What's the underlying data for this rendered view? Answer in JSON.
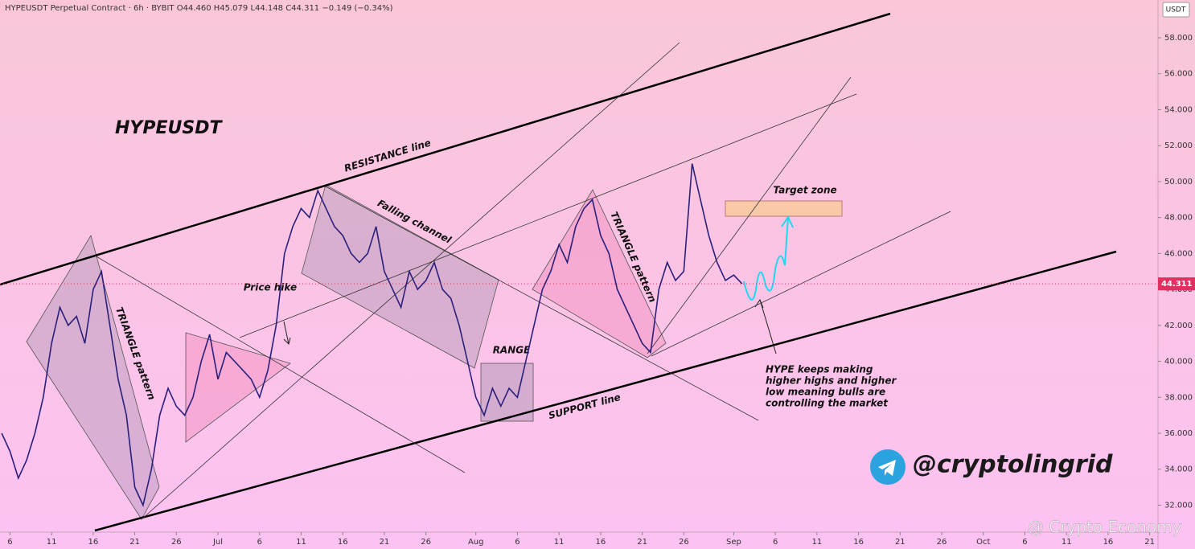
{
  "header": "HYPEUSDT Perpetual Contract · 6h · BYBIT  O44.460 H45.079 L44.148 C44.311 −0.149 (−0.34%)",
  "currency": "USDT",
  "chart_data": {
    "type": "line",
    "title": "HYPEUSDT",
    "color": "#2a1f7a",
    "x": [
      -1,
      0,
      1,
      2,
      3,
      4,
      5,
      6,
      7,
      8,
      9,
      10,
      11,
      12,
      13,
      14,
      15,
      16,
      17,
      18,
      19,
      20,
      21,
      22,
      23,
      24,
      25,
      26,
      27,
      28,
      29,
      30,
      31,
      32,
      33,
      34,
      35,
      36,
      37,
      38,
      39,
      40,
      41,
      42,
      43,
      44,
      45,
      46,
      47,
      48,
      49,
      50,
      51,
      52,
      53,
      54,
      55,
      56,
      57,
      58,
      59,
      60,
      61,
      62,
      63,
      64,
      65,
      66,
      67,
      68,
      69,
      70,
      71,
      72,
      73,
      74,
      75,
      76,
      77,
      78,
      79,
      80,
      81,
      82,
      83,
      84,
      85,
      86,
      87,
      88
    ],
    "values": [
      36,
      35,
      33.5,
      34.5,
      36,
      38,
      41,
      43,
      42,
      42.5,
      41,
      44,
      45,
      42,
      39,
      37,
      33,
      32,
      34,
      37,
      38.5,
      37.5,
      37,
      38,
      40,
      41.5,
      39,
      40.5,
      40,
      39.5,
      39,
      38,
      39.5,
      42,
      46,
      47.5,
      48.5,
      48,
      49.5,
      48.5,
      47.5,
      47,
      46,
      45.5,
      46,
      47.5,
      45,
      44,
      43,
      45,
      44,
      44.5,
      45.5,
      44,
      43.5,
      42,
      40,
      38,
      37,
      38.5,
      37.5,
      38.5,
      38,
      40,
      42,
      44,
      45,
      46.5,
      45.5,
      47.5,
      48.5,
      49,
      47,
      46,
      44,
      43,
      42,
      41,
      40.5,
      44,
      45.5,
      44.5,
      45,
      51,
      49,
      47,
      45.5,
      44.5,
      44.8,
      44.311
    ],
    "last_price": {
      "value": 44.311,
      "label": "44.311"
    },
    "xlim": [
      -1.2,
      138
    ],
    "xticks": [
      {
        "value": 0,
        "label": "6"
      },
      {
        "value": 5,
        "label": "11"
      },
      {
        "value": 10,
        "label": "16"
      },
      {
        "value": 15,
        "label": "21"
      },
      {
        "value": 20,
        "label": "26"
      },
      {
        "value": 25,
        "label": "Jul"
      },
      {
        "value": 30,
        "label": "6"
      },
      {
        "value": 35,
        "label": "11"
      },
      {
        "value": 40,
        "label": "16"
      },
      {
        "value": 45,
        "label": "21"
      },
      {
        "value": 50,
        "label": "26"
      },
      {
        "value": 56,
        "label": "Aug"
      },
      {
        "value": 61,
        "label": "6"
      },
      {
        "value": 66,
        "label": "11"
      },
      {
        "value": 71,
        "label": "16"
      },
      {
        "value": 76,
        "label": "21"
      },
      {
        "value": 81,
        "label": "26"
      },
      {
        "value": 87,
        "label": "Sep"
      },
      {
        "value": 92,
        "label": "6"
      },
      {
        "value": 97,
        "label": "11"
      },
      {
        "value": 102,
        "label": "16"
      },
      {
        "value": 107,
        "label": "21"
      },
      {
        "value": 112,
        "label": "26"
      },
      {
        "value": 117,
        "label": "Oct"
      },
      {
        "value": 122,
        "label": "6"
      },
      {
        "value": 127,
        "label": "11"
      },
      {
        "value": 132,
        "label": "16"
      },
      {
        "value": 137,
        "label": "21"
      }
    ],
    "ylim": [
      30.5,
      60.1
    ],
    "yticks": [
      {
        "value": 32,
        "label": "32.000"
      },
      {
        "value": 34,
        "label": "34.000"
      },
      {
        "value": 36,
        "label": "36.000"
      },
      {
        "value": 38,
        "label": "38.000"
      },
      {
        "value": 40,
        "label": "40.000"
      },
      {
        "value": 42,
        "label": "42.000"
      },
      {
        "value": 44,
        "label": "44.000"
      },
      {
        "value": 46,
        "label": "46.000"
      },
      {
        "value": 48,
        "label": "48.000"
      },
      {
        "value": 50,
        "label": "50.000"
      },
      {
        "value": 52,
        "label": "52.000"
      },
      {
        "value": 54,
        "label": "54.000"
      },
      {
        "value": 56,
        "label": "56.000"
      },
      {
        "value": 58,
        "label": "58.000"
      }
    ]
  },
  "annotations": {
    "resistance": "RESISTANCE line",
    "support": "SUPPORT line",
    "falling": "Falling channel",
    "price_hike": "Price hike",
    "triangle_1": "TRIANGLE pattern",
    "triangle_2": "TRIANGLE pattern",
    "range": "RANGE",
    "target": "Target zone",
    "note": [
      "HYPE keeps making",
      "higher highs and higher",
      "low meaning  bulls are",
      "controlling the market"
    ]
  },
  "watermarks": {
    "author": "@cryptolingrid",
    "source": "@ Crypto Economy"
  }
}
